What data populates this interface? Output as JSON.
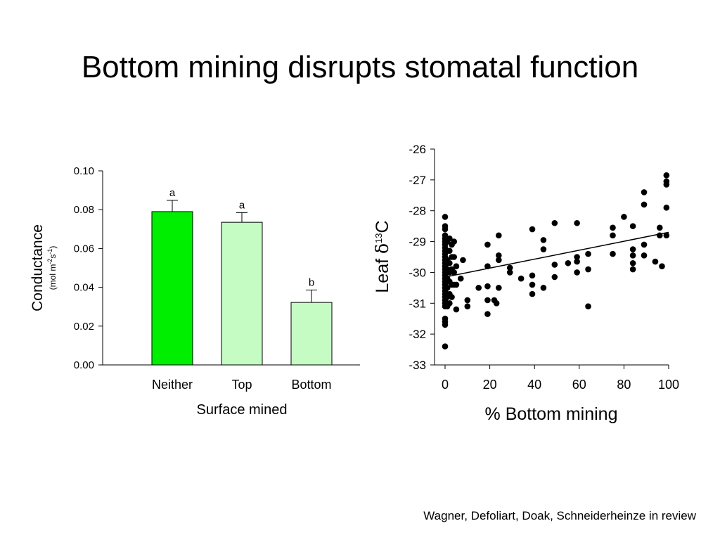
{
  "slide": {
    "title": "Bottom mining disrupts stomatal function",
    "citation": "Wagner, Defoliart, Doak, Schneiderheinze in review"
  },
  "chart_data": [
    {
      "type": "bar",
      "categories": [
        "Neither",
        "Top",
        "Bottom"
      ],
      "values": [
        0.079,
        0.0735,
        0.0322
      ],
      "error_upper": [
        0.0848,
        0.0785,
        0.0386
      ],
      "significance_letters": [
        "a",
        "a",
        "b"
      ],
      "bar_colors": [
        "#00ee00",
        "#c4fcc4",
        "#c4fcc4"
      ],
      "xlabel": "Surface mined",
      "ylabel": "Conductance",
      "ylabel_units": {
        "base": "(mol m",
        "sup1": "-2",
        "mid": "s",
        "sup2": "-1",
        "end": ")"
      },
      "ylim": [
        0,
        0.1
      ],
      "yticks": [
        "0.00",
        "0.02",
        "0.04",
        "0.06",
        "0.08",
        "0.10"
      ],
      "grid": false
    },
    {
      "type": "scatter",
      "xlabel": "% Bottom mining",
      "ylabel": {
        "prefix": "Leaf ",
        "delta": "δ",
        "sup": "13",
        "suffix": "C"
      },
      "xlim": [
        0,
        100
      ],
      "ylim": [
        -33,
        -26
      ],
      "xticks": [
        "0",
        "20",
        "40",
        "60",
        "80",
        "100"
      ],
      "yticks": [
        "-26",
        "-27",
        "-28",
        "-29",
        "-30",
        "-31",
        "-32",
        "-33"
      ],
      "grid": false,
      "trend_line": {
        "x": [
          0,
          100
        ],
        "y": [
          -30.15,
          -28.7
        ]
      },
      "points": [
        [
          0,
          -28.2
        ],
        [
          0,
          -28.5
        ],
        [
          0,
          -28.6
        ],
        [
          0,
          -28.8
        ],
        [
          0,
          -28.9
        ],
        [
          0,
          -29.0
        ],
        [
          0,
          -29.1
        ],
        [
          0,
          -29.2
        ],
        [
          0,
          -29.3
        ],
        [
          0,
          -29.4
        ],
        [
          0,
          -29.5
        ],
        [
          0,
          -29.6
        ],
        [
          0,
          -29.7
        ],
        [
          0,
          -29.8
        ],
        [
          0,
          -29.9
        ],
        [
          0,
          -30.0
        ],
        [
          0,
          -30.1
        ],
        [
          0,
          -30.2
        ],
        [
          0,
          -30.3
        ],
        [
          0,
          -30.4
        ],
        [
          0,
          -30.5
        ],
        [
          0,
          -30.6
        ],
        [
          0,
          -30.7
        ],
        [
          0,
          -30.8
        ],
        [
          0,
          -30.9
        ],
        [
          0,
          -31.0
        ],
        [
          0,
          -31.1
        ],
        [
          0,
          -31.5
        ],
        [
          0,
          -31.6
        ],
        [
          0,
          -31.7
        ],
        [
          0,
          -32.4
        ],
        [
          1,
          -29.0
        ],
        [
          1,
          -29.3
        ],
        [
          1,
          -29.6
        ],
        [
          1,
          -29.9
        ],
        [
          1,
          -30.2
        ],
        [
          1,
          -30.5
        ],
        [
          1,
          -30.8
        ],
        [
          1,
          -31.1
        ],
        [
          2,
          -28.9
        ],
        [
          2,
          -29.3
        ],
        [
          2,
          -29.7
        ],
        [
          2,
          -30.0
        ],
        [
          2,
          -30.3
        ],
        [
          2,
          -30.7
        ],
        [
          2,
          -31.0
        ],
        [
          3,
          -29.1
        ],
        [
          3,
          -29.5
        ],
        [
          3,
          -29.9
        ],
        [
          3,
          -30.4
        ],
        [
          3,
          -30.8
        ],
        [
          4,
          -29.0
        ],
        [
          4,
          -29.5
        ],
        [
          4,
          -30.0
        ],
        [
          4,
          -30.4
        ],
        [
          5,
          -29.8
        ],
        [
          5,
          -30.4
        ],
        [
          5,
          -31.2
        ],
        [
          7,
          -30.2
        ],
        [
          8,
          -29.6
        ],
        [
          10,
          -30.9
        ],
        [
          10,
          -31.1
        ],
        [
          15,
          -30.5
        ],
        [
          19,
          -29.1
        ],
        [
          19,
          -29.8
        ],
        [
          19,
          -30.45
        ],
        [
          19,
          -30.9
        ],
        [
          19,
          -31.35
        ],
        [
          22,
          -30.9
        ],
        [
          23,
          -31.0
        ],
        [
          24,
          -28.8
        ],
        [
          24,
          -29.45
        ],
        [
          24,
          -29.6
        ],
        [
          24,
          -30.5
        ],
        [
          29,
          -29.85
        ],
        [
          29,
          -30.0
        ],
        [
          34,
          -30.2
        ],
        [
          39,
          -28.6
        ],
        [
          39,
          -30.1
        ],
        [
          39,
          -30.4
        ],
        [
          39,
          -30.7
        ],
        [
          44,
          -28.95
        ],
        [
          44,
          -29.25
        ],
        [
          44,
          -30.5
        ],
        [
          49,
          -28.4
        ],
        [
          49,
          -29.75
        ],
        [
          49,
          -30.15
        ],
        [
          55,
          -29.7
        ],
        [
          59,
          -28.4
        ],
        [
          59,
          -29.5
        ],
        [
          59,
          -29.65
        ],
        [
          59,
          -30.0
        ],
        [
          64,
          -29.4
        ],
        [
          64,
          -29.9
        ],
        [
          64,
          -31.1
        ],
        [
          75,
          -28.55
        ],
        [
          75,
          -28.8
        ],
        [
          75,
          -29.4
        ],
        [
          80,
          -28.2
        ],
        [
          84,
          -28.5
        ],
        [
          84,
          -29.25
        ],
        [
          84,
          -29.45
        ],
        [
          84,
          -29.7
        ],
        [
          84,
          -29.9
        ],
        [
          89,
          -27.4
        ],
        [
          89,
          -27.8
        ],
        [
          89,
          -29.1
        ],
        [
          89,
          -29.45
        ],
        [
          94,
          -29.65
        ],
        [
          96,
          -28.55
        ],
        [
          96,
          -28.8
        ],
        [
          97,
          -29.8
        ],
        [
          99,
          -26.85
        ],
        [
          99,
          -27.05
        ],
        [
          99,
          -27.15
        ],
        [
          99,
          -27.9
        ],
        [
          99,
          -28.8
        ]
      ]
    }
  ]
}
